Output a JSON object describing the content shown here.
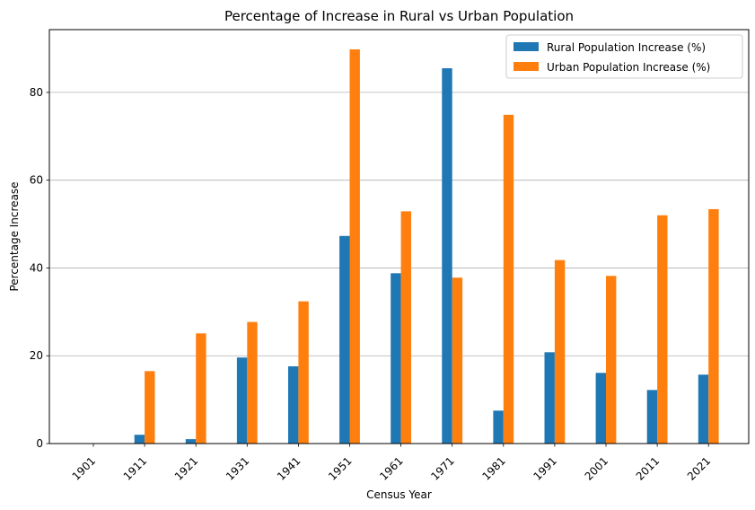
{
  "chart_data": {
    "type": "bar",
    "title": "Percentage of Increase in Rural vs Urban Population",
    "xlabel": "Census Year",
    "ylabel": "Percentage Increase",
    "categories": [
      "1901",
      "1911",
      "1921",
      "1931",
      "1941",
      "1951",
      "1961",
      "1971",
      "1981",
      "1991",
      "2001",
      "2011",
      "2021"
    ],
    "series": [
      {
        "name": "Rural Population Increase (%)",
        "color": "#1f77b4",
        "values": [
          0,
          2.0,
          1.0,
          19.6,
          17.6,
          47.3,
          38.8,
          85.5,
          7.5,
          20.8,
          16.1,
          12.2,
          15.7
        ]
      },
      {
        "name": "Urban Population Increase (%)",
        "color": "#ff7f0e",
        "values": [
          0,
          16.5,
          25.1,
          27.7,
          32.4,
          89.8,
          52.9,
          37.8,
          74.9,
          41.8,
          38.2,
          52.0,
          53.4
        ]
      }
    ],
    "ylim": [
      0,
      94.3
    ],
    "yticks": [
      "0",
      "20",
      "40",
      "60",
      "80"
    ],
    "grid": "y",
    "legend": "top-right"
  }
}
